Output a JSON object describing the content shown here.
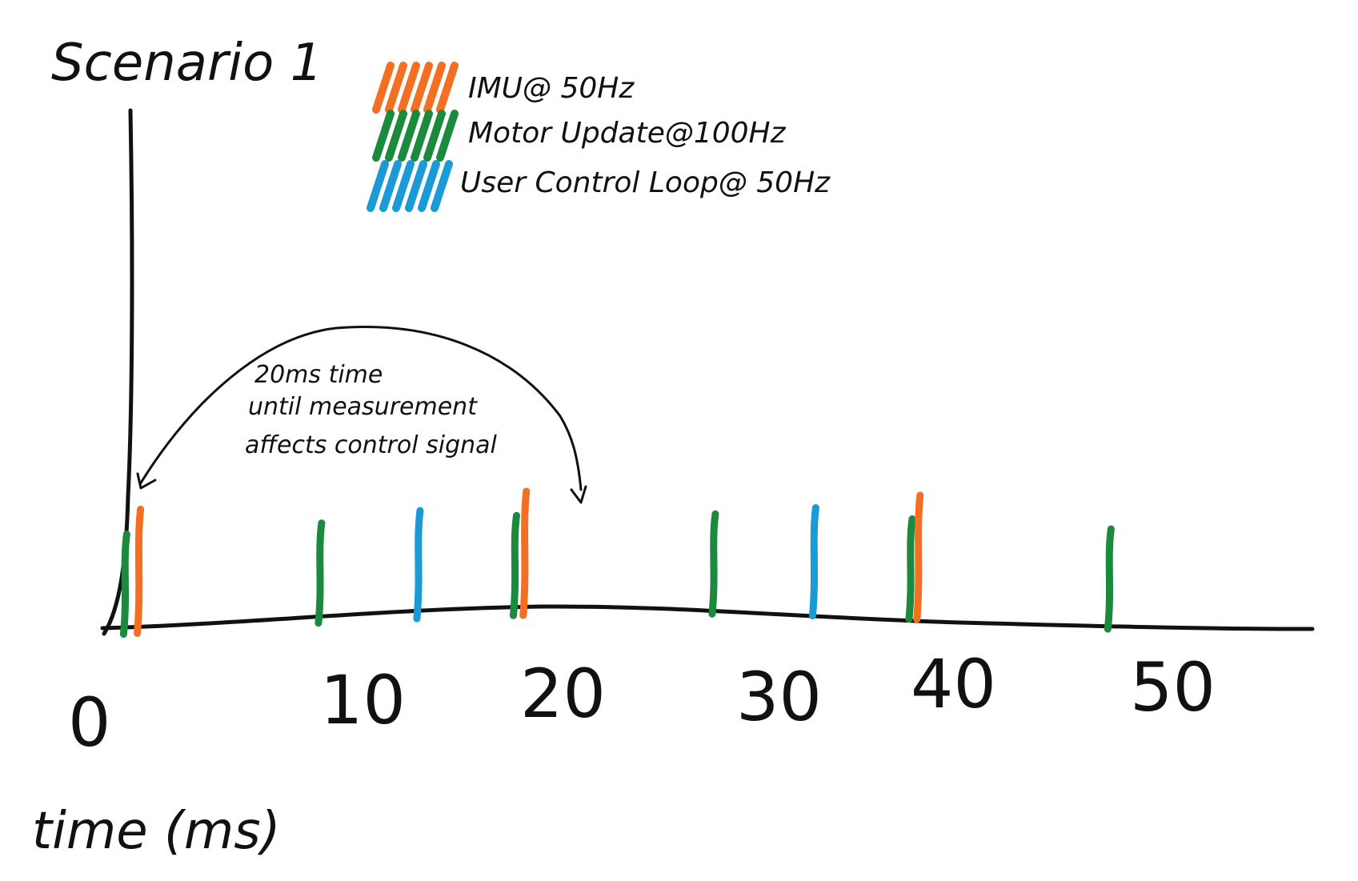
{
  "title": "Scenario 1",
  "legend": [
    {
      "label": "IMU@ 50Hz",
      "color": "#f36f21",
      "icon": "orange-scribble"
    },
    {
      "label": "Motor Update@100Hz",
      "color": "#1b8a3c",
      "icon": "green-scribble"
    },
    {
      "label": "User Control Loop@ 50Hz",
      "color": "#1a9ad6",
      "icon": "blue-scribble"
    }
  ],
  "x_axis": {
    "label": "time (ms)",
    "ticks": [
      "0",
      "10",
      "20",
      "30",
      "40",
      "50"
    ]
  },
  "annotation": {
    "lines": [
      "20ms time",
      "until measurement",
      "affects control signal"
    ]
  },
  "events": [
    {
      "type": "motor",
      "time_ms": 0.3,
      "color": "#1b8a3c"
    },
    {
      "type": "imu",
      "time_ms": 1.0,
      "color": "#f36f21"
    },
    {
      "type": "motor",
      "time_ms": 10.2,
      "color": "#1b8a3c"
    },
    {
      "type": "control",
      "time_ms": 15.2,
      "color": "#1a9ad6"
    },
    {
      "type": "motor",
      "time_ms": 20.1,
      "color": "#1b8a3c"
    },
    {
      "type": "imu",
      "time_ms": 20.6,
      "color": "#f36f21"
    },
    {
      "type": "motor",
      "time_ms": 30.2,
      "color": "#1b8a3c"
    },
    {
      "type": "control",
      "time_ms": 35.3,
      "color": "#1a9ad6"
    },
    {
      "type": "motor",
      "time_ms": 40.2,
      "color": "#1b8a3c"
    },
    {
      "type": "imu",
      "time_ms": 40.6,
      "color": "#f36f21"
    },
    {
      "type": "motor",
      "time_ms": 50.3,
      "color": "#1b8a3c"
    }
  ]
}
